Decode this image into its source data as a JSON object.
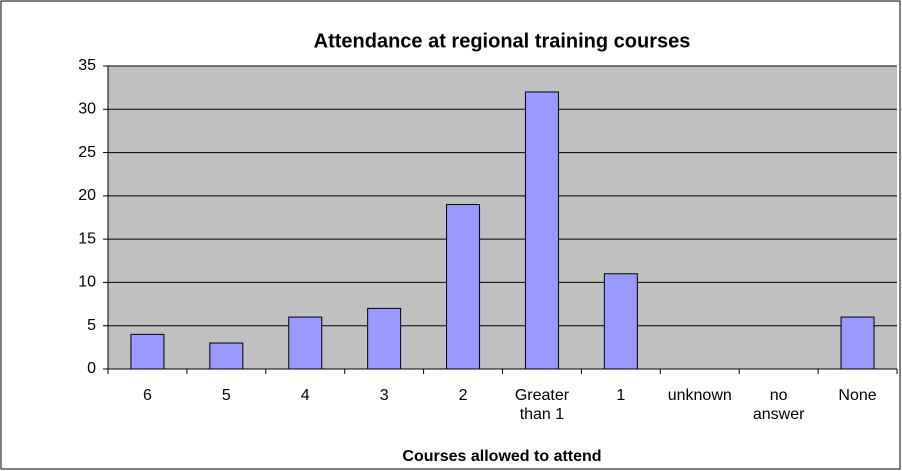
{
  "chart_data": {
    "type": "bar",
    "title": "Attendance at regional training courses",
    "x_label": "Courses allowed to attend",
    "categories": [
      "6",
      "5",
      "4",
      "3",
      "2",
      "Greater than 1",
      "1",
      "unknown",
      "no answer",
      "None"
    ],
    "values": [
      4,
      3,
      6,
      7,
      19,
      32,
      11,
      0,
      0,
      6
    ],
    "color": "#9999ff",
    "ylim": [
      0,
      35
    ],
    "yticks": [
      0,
      5,
      10,
      15,
      20,
      25,
      30,
      35
    ],
    "grid": true
  }
}
